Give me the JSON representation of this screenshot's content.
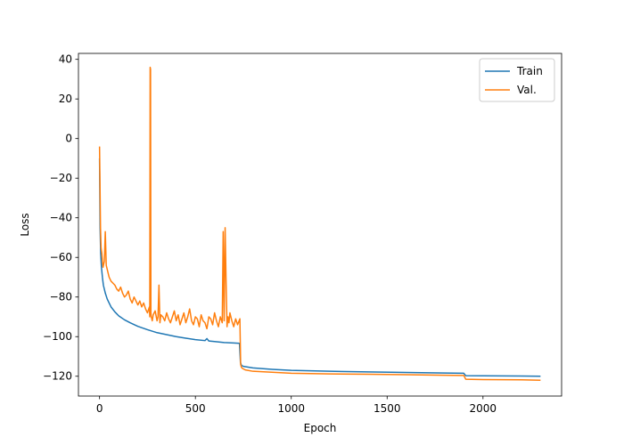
{
  "chart_data": {
    "type": "line",
    "title": "",
    "xlabel": "Epoch",
    "ylabel": "Loss",
    "xlim": [
      -110,
      2410
    ],
    "ylim": [
      -130,
      43
    ],
    "xticks": [
      0,
      500,
      1000,
      1500,
      2000
    ],
    "yticks": [
      -120,
      -100,
      -80,
      -60,
      -40,
      -20,
      0,
      20,
      40
    ],
    "grid": false,
    "legend_position": "top-right",
    "series": [
      {
        "name": "Train",
        "color": "#1f77b4",
        "x": [
          0,
          3,
          6,
          10,
          15,
          20,
          30,
          40,
          50,
          60,
          80,
          100,
          130,
          160,
          200,
          250,
          300,
          350,
          400,
          450,
          500,
          550,
          560,
          570,
          600,
          650,
          700,
          730,
          735,
          740,
          750,
          800,
          900,
          1000,
          1200,
          1400,
          1600,
          1800,
          1900,
          1910,
          2000,
          2200,
          2300
        ],
        "y": [
          -10,
          -45,
          -58,
          -65,
          -70,
          -74,
          -78,
          -81,
          -83,
          -85,
          -87.5,
          -89.5,
          -91.5,
          -93,
          -94.8,
          -96.5,
          -98,
          -99,
          -100,
          -100.8,
          -101.5,
          -102,
          -101,
          -102.2,
          -102.5,
          -103,
          -103.2,
          -103.4,
          -113,
          -114.5,
          -115,
          -115.8,
          -116.5,
          -117,
          -117.5,
          -117.8,
          -118.1,
          -118.4,
          -118.5,
          -119.7,
          -119.8,
          -119.9,
          -120
        ]
      },
      {
        "name": "Val.",
        "color": "#ff7f0e",
        "x": [
          0,
          2,
          5,
          8,
          12,
          18,
          25,
          30,
          35,
          40,
          45,
          50,
          60,
          70,
          80,
          90,
          100,
          110,
          120,
          130,
          140,
          150,
          160,
          170,
          180,
          190,
          200,
          210,
          220,
          230,
          240,
          250,
          260,
          262,
          264,
          266,
          268,
          270,
          275,
          280,
          290,
          300,
          305,
          310,
          315,
          320,
          330,
          340,
          350,
          360,
          370,
          380,
          390,
          400,
          410,
          420,
          430,
          440,
          450,
          460,
          470,
          480,
          490,
          500,
          510,
          520,
          530,
          540,
          550,
          560,
          570,
          580,
          590,
          600,
          610,
          620,
          630,
          640,
          645,
          650,
          655,
          660,
          665,
          670,
          675,
          680,
          690,
          700,
          710,
          720,
          728,
          732,
          736,
          740,
          745,
          750,
          760,
          800,
          900,
          1000,
          1200,
          1400,
          1600,
          1800,
          1900,
          1910,
          2000,
          2200,
          2300
        ],
        "y": [
          -4,
          -20,
          -45,
          -55,
          -58,
          -65,
          -62,
          -47,
          -64,
          -66,
          -68,
          -70,
          -72,
          -73,
          -74,
          -76,
          -77,
          -75,
          -78,
          -80,
          -79,
          -77,
          -81,
          -83,
          -80,
          -82,
          -84,
          -82,
          -85,
          -83,
          -86,
          -88,
          -85,
          -90,
          36,
          35,
          -88,
          -90,
          -92,
          -89,
          -87,
          -92,
          -90,
          -74,
          -93,
          -89,
          -90,
          -92,
          -88,
          -91,
          -93,
          -90,
          -87,
          -92,
          -89,
          -94,
          -91,
          -88,
          -93,
          -90,
          -86,
          -92,
          -94,
          -90,
          -91,
          -95,
          -89,
          -92,
          -93,
          -96,
          -90,
          -91,
          -94,
          -88,
          -92,
          -95,
          -90,
          -93,
          -47,
          -92,
          -45,
          -72,
          -95,
          -90,
          -93,
          -88,
          -92,
          -95,
          -91,
          -94,
          -92,
          -91,
          -114,
          -115.5,
          -116,
          -116.3,
          -116.8,
          -117.5,
          -118,
          -118.5,
          -118.8,
          -119,
          -119.2,
          -119.5,
          -119.6,
          -121.5,
          -121.7,
          -121.8,
          -122
        ]
      }
    ]
  }
}
